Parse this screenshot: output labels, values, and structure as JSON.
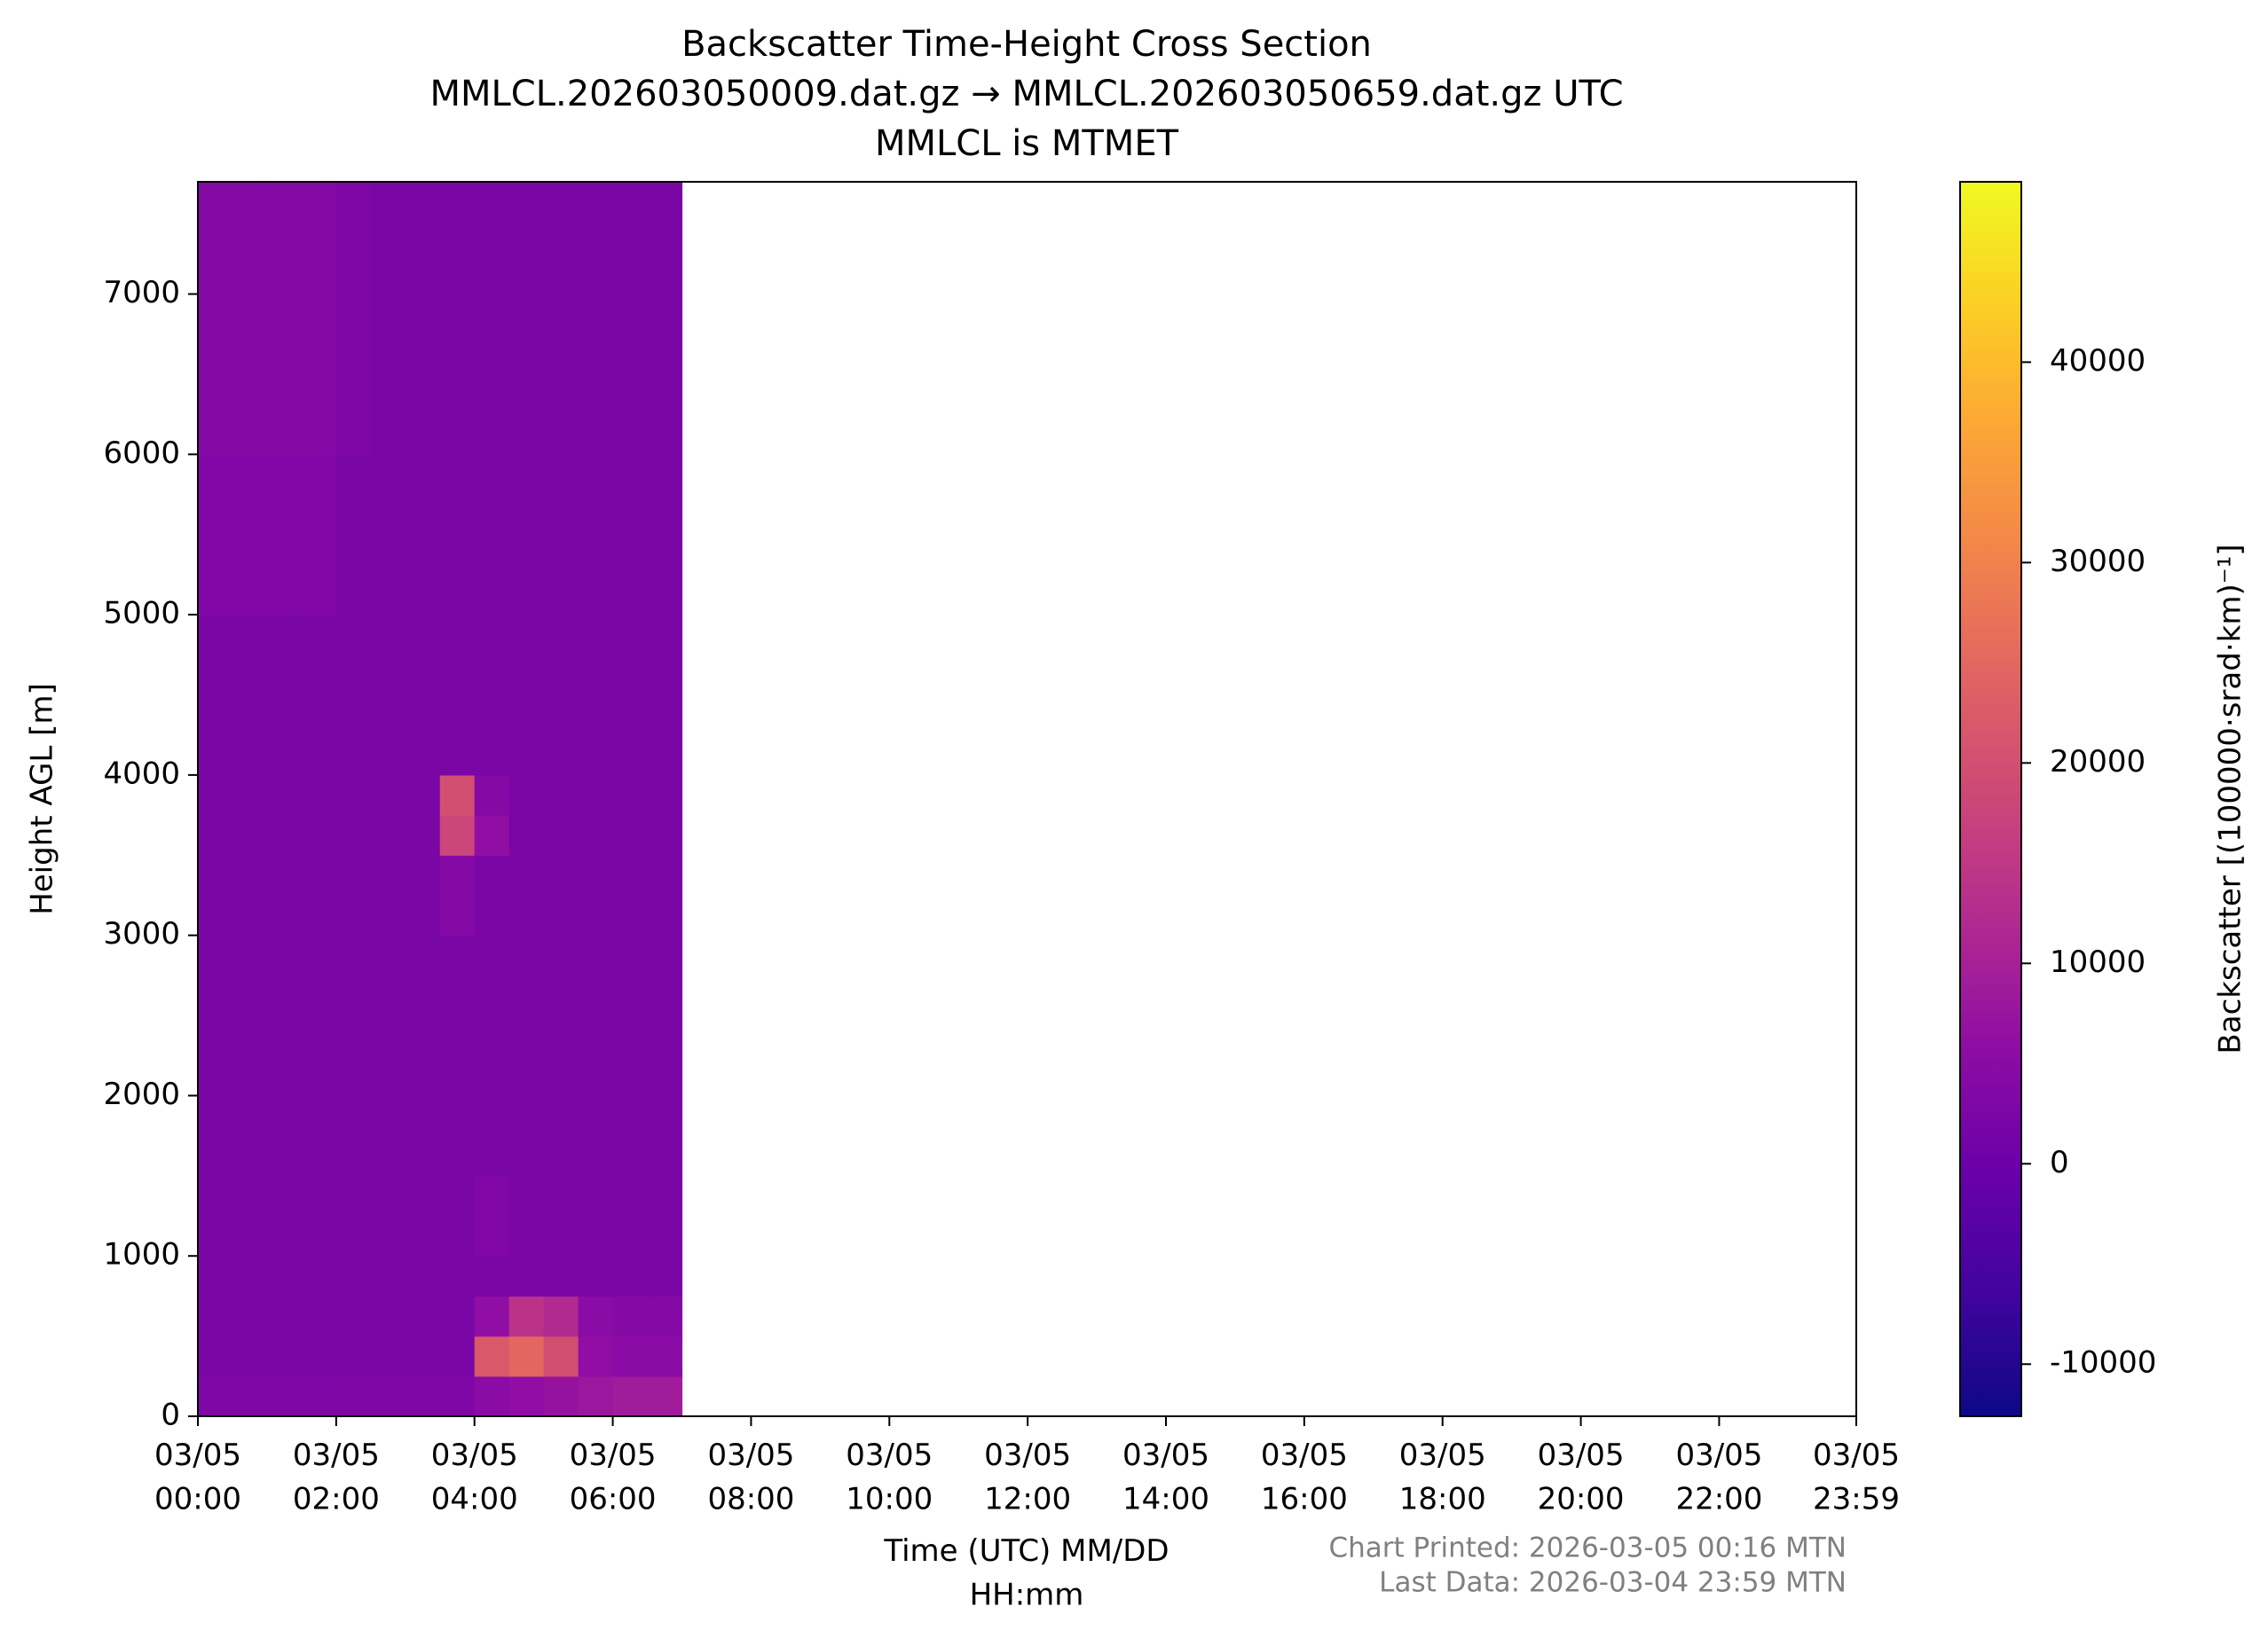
{
  "chart_data": {
    "type": "heatmap",
    "title": "Backscatter Time-Height Cross Section",
    "subtitle": [
      "MMLCL.202603050009.dat.gz → MMLCL.202603050659.dat.gz UTC",
      "MMLCL is MTMET"
    ],
    "xlabel": "Time (UTC) MM/DD\nHH:mm",
    "ylabel": "Height AGL [m]",
    "colorbar_label": "Backscatter [(100000·srad·km)⁻¹]",
    "annotations": [
      "Chart Printed: 2026-03-05 00:16 MTN",
      "Last Data: 2026-03-04 23:59 MTN"
    ],
    "cmap": "plasma",
    "xlim": [
      0,
      23.9833
    ],
    "xticks": [
      {
        "value": 0,
        "label": "03/05\n00:00"
      },
      {
        "value": 2,
        "label": "03/05\n02:00"
      },
      {
        "value": 4,
        "label": "03/05\n04:00"
      },
      {
        "value": 6,
        "label": "03/05\n06:00"
      },
      {
        "value": 8,
        "label": "03/05\n08:00"
      },
      {
        "value": 10,
        "label": "03/05\n10:00"
      },
      {
        "value": 12,
        "label": "03/05\n12:00"
      },
      {
        "value": 14,
        "label": "03/05\n14:00"
      },
      {
        "value": 16,
        "label": "03/05\n16:00"
      },
      {
        "value": 18,
        "label": "03/05\n18:00"
      },
      {
        "value": 20,
        "label": "03/05\n20:00"
      },
      {
        "value": 22,
        "label": "03/05\n22:00"
      },
      {
        "value": 23.9833,
        "label": "03/05\n23:59"
      }
    ],
    "ylim": [
      0,
      7700
    ],
    "yticks": [
      0,
      1000,
      2000,
      3000,
      4000,
      5000,
      6000,
      7000
    ],
    "clim": [
      -12600,
      49000
    ],
    "cticks": [
      -10000,
      0,
      10000,
      20000,
      30000,
      40000
    ],
    "x_edges": [
      0,
      0.5,
      1,
      1.5,
      2,
      2.5,
      3,
      3.5,
      4,
      4.5,
      5,
      5.5,
      6,
      6.5,
      7
    ],
    "y_edges": [
      0,
      250,
      500,
      750,
      1000,
      1500,
      2000,
      3000,
      3500,
      3750,
      4000,
      5000,
      6000,
      7700
    ],
    "z": [
      [
        3000,
        3000,
        3000,
        3000,
        3000,
        3000,
        3000,
        3000,
        5000,
        6000,
        7000,
        8000,
        9000,
        9000
      ],
      [
        2500,
        2500,
        2500,
        2500,
        2500,
        2500,
        2500,
        2500,
        22000,
        25000,
        20000,
        6000,
        5000,
        5000
      ],
      [
        2500,
        2500,
        2500,
        2500,
        2500,
        2500,
        2500,
        2500,
        6000,
        14000,
        12000,
        5000,
        4000,
        4000
      ],
      [
        2500,
        2500,
        2500,
        2500,
        2500,
        2500,
        2500,
        2500,
        2500,
        2500,
        2500,
        2500,
        2500,
        2500
      ],
      [
        2500,
        2500,
        2500,
        2500,
        2500,
        2500,
        2500,
        2500,
        3500,
        2500,
        2500,
        2500,
        2500,
        2500
      ],
      [
        2500,
        2500,
        2500,
        2500,
        2500,
        2500,
        2500,
        2500,
        2500,
        2500,
        2500,
        2500,
        2500,
        2500
      ],
      [
        2500,
        2500,
        2500,
        2500,
        2500,
        2500,
        2500,
        2500,
        2500,
        2500,
        2500,
        2500,
        2500,
        2500
      ],
      [
        2500,
        2500,
        2500,
        2500,
        2500,
        2500,
        2500,
        4000,
        2500,
        2500,
        2500,
        2500,
        2500,
        2500
      ],
      [
        2500,
        2500,
        2500,
        2500,
        2500,
        2500,
        2500,
        18000,
        6000,
        2500,
        2500,
        2500,
        2500,
        2500
      ],
      [
        2500,
        2500,
        2500,
        2500,
        2500,
        2500,
        2500,
        20000,
        4000,
        2500,
        2500,
        2500,
        2500,
        2500
      ],
      [
        2500,
        2500,
        2500,
        2500,
        2500,
        2500,
        2500,
        2500,
        2500,
        2500,
        2500,
        2500,
        2500,
        2500
      ],
      [
        3500,
        3500,
        3500,
        3500,
        2500,
        2500,
        2500,
        2500,
        2500,
        2500,
        2500,
        2500,
        2500,
        2500
      ],
      [
        4000,
        4000,
        4000,
        4000,
        3000,
        2500,
        2500,
        2500,
        2500,
        2500,
        2500,
        2500,
        2500,
        2500
      ]
    ]
  }
}
